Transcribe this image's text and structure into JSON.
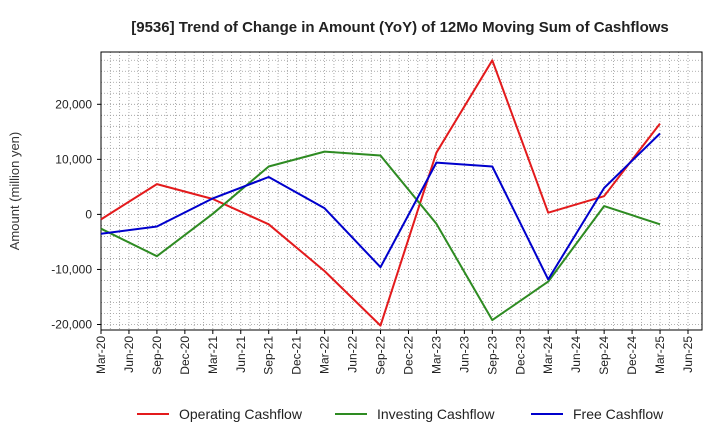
{
  "chart_data": {
    "type": "line",
    "title": "[9536]  Trend of Change in Amount (YoY) of 12Mo Moving Sum of Cashflows",
    "xlabel": "",
    "ylabel": "Amount (million yen)",
    "ylim": [
      -21000,
      29500
    ],
    "yticks": [
      -20000,
      -10000,
      0,
      10000,
      20000
    ],
    "ytick_labels": [
      "-20,000",
      "-10,000",
      "0",
      "10,000",
      "20,000"
    ],
    "categories": [
      "Mar-20",
      "Jun-20",
      "Sep-20",
      "Dec-20",
      "Mar-21",
      "Jun-21",
      "Sep-21",
      "Dec-21",
      "Mar-22",
      "Jun-22",
      "Sep-22",
      "Dec-22",
      "Mar-23",
      "Jun-23",
      "Sep-23",
      "Dec-23",
      "Mar-24",
      "Jun-24",
      "Sep-24",
      "Dec-24",
      "Mar-25",
      "Jun-25"
    ],
    "grid": true,
    "legend_position": "bottom",
    "series": [
      {
        "name": "Operating Cashflow",
        "color": "#e31a1c",
        "x": [
          "Mar-20",
          "Sep-20",
          "Mar-21",
          "Sep-21",
          "Mar-22",
          "Sep-22",
          "Mar-23",
          "Sep-23",
          "Mar-24",
          "Sep-24",
          "Mar-25"
        ],
        "values": [
          -900,
          5500,
          2800,
          -1800,
          -10300,
          -20200,
          11200,
          28000,
          300,
          3300,
          16500
        ]
      },
      {
        "name": "Investing Cashflow",
        "color": "#2e8b22",
        "x": [
          "Mar-20",
          "Sep-20",
          "Mar-21",
          "Sep-21",
          "Mar-22",
          "Sep-22",
          "Mar-23",
          "Sep-23",
          "Mar-24",
          "Sep-24",
          "Mar-25"
        ],
        "values": [
          -2600,
          -7600,
          100,
          8700,
          11400,
          10700,
          -1700,
          -19200,
          -12200,
          1500,
          -1800
        ]
      },
      {
        "name": "Free Cashflow",
        "color": "#0000cc",
        "x": [
          "Mar-20",
          "Sep-20",
          "Mar-21",
          "Sep-21",
          "Mar-22",
          "Sep-22",
          "Mar-23",
          "Sep-23",
          "Mar-24",
          "Sep-24",
          "Mar-25"
        ],
        "values": [
          -3500,
          -2200,
          2900,
          6800,
          1100,
          -9600,
          9400,
          8700,
          -11800,
          4800,
          14700
        ]
      }
    ]
  }
}
